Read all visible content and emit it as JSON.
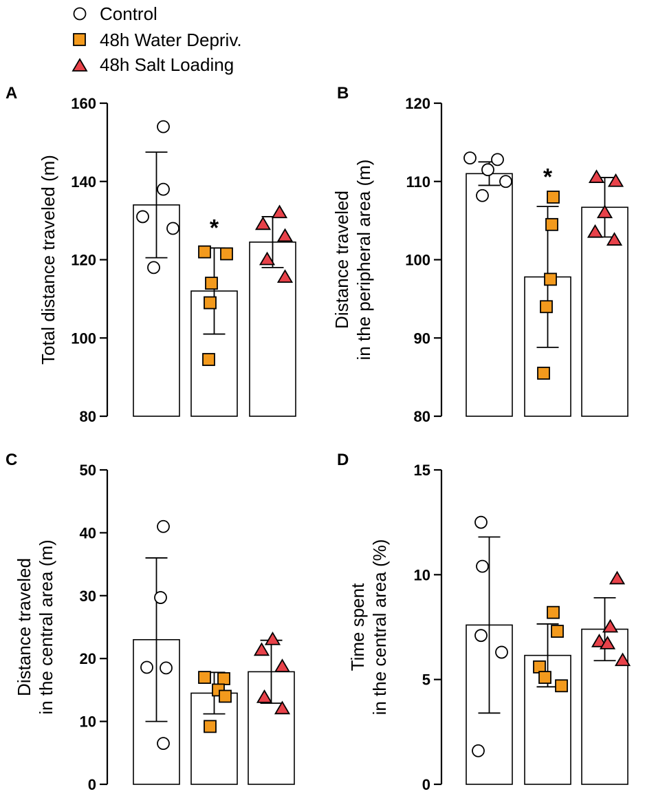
{
  "legend": {
    "items": [
      {
        "label": "Control",
        "marker": "circle",
        "fill": "#ffffff"
      },
      {
        "label": "48h Water Depriv.",
        "marker": "square",
        "fill": "#f39a1d"
      },
      {
        "label": "48h Salt Loading",
        "marker": "triangle",
        "fill": "#e8424a"
      }
    ]
  },
  "colors": {
    "control": "#ffffff",
    "water": "#f39a1d",
    "salt": "#e8424a",
    "stroke": "#000000"
  },
  "chart_data": [
    {
      "type": "bar",
      "panel": "A",
      "ylabel_lines": [
        "Total distance traveled (m)"
      ],
      "ylim": [
        80,
        160
      ],
      "yticks": [
        80,
        100,
        120,
        140,
        160
      ],
      "categories": [
        "Control",
        "48h Water Depriv.",
        "48h Salt Loading"
      ],
      "series": [
        {
          "name": "Control",
          "mean": 134,
          "sd": 13.5,
          "points": [
            154,
            138,
            131,
            128,
            118
          ],
          "significant": false
        },
        {
          "name": "48h Water Depriv.",
          "mean": 112,
          "sd": 11,
          "points": [
            122,
            121.5,
            114,
            109,
            94.5
          ],
          "significant": true
        },
        {
          "name": "48h Salt Loading",
          "mean": 124.5,
          "sd": 6.5,
          "points": [
            132,
            129,
            126,
            120,
            115.5
          ],
          "significant": false
        }
      ],
      "significance_label": "*"
    },
    {
      "type": "bar",
      "panel": "B",
      "ylabel_lines": [
        "Distance traveled",
        "in the peripheral area (m)"
      ],
      "ylim": [
        80,
        120
      ],
      "yticks": [
        80,
        90,
        100,
        110,
        120
      ],
      "categories": [
        "Control",
        "48h Water Depriv.",
        "48h Salt Loading"
      ],
      "series": [
        {
          "name": "Control",
          "mean": 111,
          "sd": 1.5,
          "points": [
            113,
            112.8,
            111.5,
            110,
            108.2
          ],
          "significant": false
        },
        {
          "name": "48h Water Depriv.",
          "mean": 97.8,
          "sd": 9,
          "points": [
            108,
            104.5,
            97.5,
            94,
            85.5
          ],
          "significant": true
        },
        {
          "name": "48h Salt Loading",
          "mean": 106.7,
          "sd": 3.8,
          "points": [
            110.5,
            110,
            106,
            103.5,
            102.5
          ],
          "significant": false
        }
      ],
      "significance_label": "*"
    },
    {
      "type": "bar",
      "panel": "C",
      "ylabel_lines": [
        "Distance traveled",
        "in the central area (m)"
      ],
      "ylim": [
        0,
        50
      ],
      "yticks": [
        0,
        10,
        20,
        30,
        40,
        50
      ],
      "categories": [
        "Control",
        "48h Water Depriv.",
        "48h Salt Loading"
      ],
      "series": [
        {
          "name": "Control",
          "mean": 23,
          "sd": 13,
          "points": [
            41,
            29.7,
            18.6,
            18.5,
            6.5
          ],
          "significant": false
        },
        {
          "name": "48h Water Depriv.",
          "mean": 14.5,
          "sd": 3.3,
          "points": [
            17,
            16.8,
            15,
            14,
            9.2
          ],
          "significant": false
        },
        {
          "name": "48h Salt Loading",
          "mean": 17.9,
          "sd": 5,
          "points": [
            23,
            21.3,
            18.7,
            13.8,
            12
          ],
          "significant": false
        }
      ],
      "significance_label": "*"
    },
    {
      "type": "bar",
      "panel": "D",
      "ylabel_lines": [
        "Time spent",
        "in the central area (%)"
      ],
      "ylim": [
        0,
        15
      ],
      "yticks": [
        0,
        5,
        10,
        15
      ],
      "categories": [
        "Control",
        "48h Water Depriv.",
        "48h Salt Loading"
      ],
      "series": [
        {
          "name": "Control",
          "mean": 7.6,
          "sd": 4.2,
          "points": [
            12.5,
            10.4,
            7.1,
            6.3,
            1.6
          ],
          "significant": false
        },
        {
          "name": "48h Water Depriv.",
          "mean": 6.15,
          "sd": 1.5,
          "points": [
            8.2,
            7.3,
            5.6,
            5.1,
            4.7
          ],
          "significant": false
        },
        {
          "name": "48h Salt Loading",
          "mean": 7.4,
          "sd": 1.5,
          "points": [
            9.8,
            7.5,
            6.8,
            6.7,
            5.9
          ],
          "significant": false
        }
      ],
      "significance_label": "*"
    }
  ]
}
